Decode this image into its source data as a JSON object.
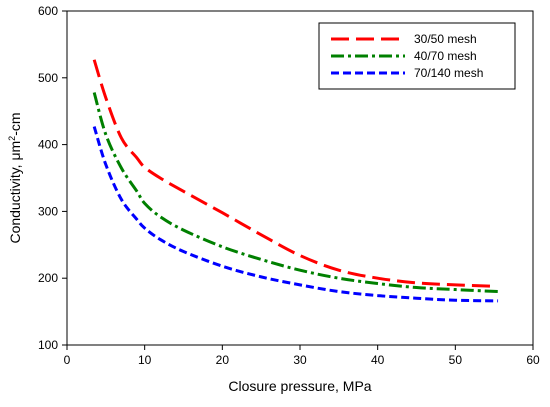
{
  "chart_data": {
    "type": "line",
    "title": "",
    "xlabel": "Closure pressure, MPa",
    "ylabel": {
      "prefix": "Conductivity, μm",
      "sup": "2",
      "suffix": "-cm"
    },
    "xlim": [
      0,
      60
    ],
    "ylim": [
      100,
      600
    ],
    "xticks": [
      0,
      10,
      20,
      30,
      40,
      50,
      60
    ],
    "yticks": [
      100,
      200,
      300,
      400,
      500,
      600
    ],
    "grid": false,
    "legend": "top-right",
    "series": [
      {
        "name": "30/50 mesh",
        "color": "#ff0000",
        "dash": "dashed",
        "x": [
          3.5,
          5,
          7,
          9,
          10,
          12,
          15,
          20,
          25,
          30,
          35,
          40,
          45,
          50,
          55
        ],
        "y": [
          527,
          470,
          410,
          380,
          366,
          350,
          330,
          298,
          265,
          234,
          212,
          200,
          193,
          190,
          188
        ]
      },
      {
        "name": "40/70 mesh",
        "color": "#008000",
        "dash": "dashdot",
        "x": [
          3.5,
          5,
          7,
          9,
          10,
          12,
          15,
          20,
          25,
          30,
          35,
          40,
          45,
          50,
          55.5
        ],
        "y": [
          478,
          415,
          365,
          330,
          312,
          292,
          272,
          247,
          228,
          212,
          200,
          192,
          186,
          183,
          180
        ]
      },
      {
        "name": "70/140 mesh",
        "color": "#0000ff",
        "dash": "shortdash",
        "x": [
          3.5,
          5,
          7,
          9,
          10,
          12,
          15,
          20,
          25,
          30,
          35,
          40,
          45,
          50,
          55.5
        ],
        "y": [
          427,
          370,
          318,
          288,
          275,
          258,
          240,
          218,
          202,
          190,
          180,
          174,
          170,
          167,
          166
        ]
      }
    ]
  }
}
